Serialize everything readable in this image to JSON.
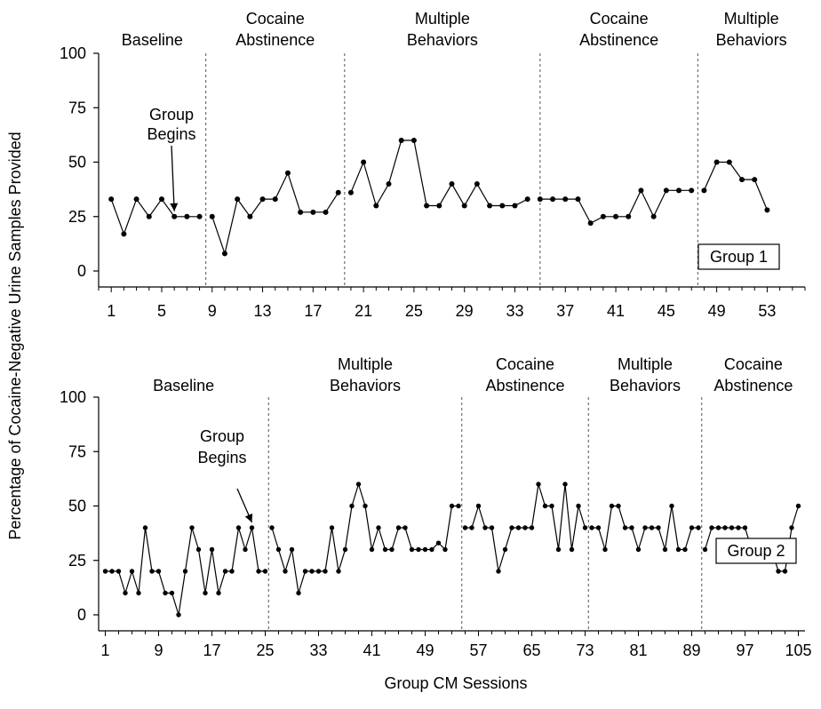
{
  "figure": {
    "ylabel": "Percentage of Cocaine-Negative Urine Samples Provided",
    "xlabel": "Group CM Sessions"
  },
  "chart_data": [
    {
      "type": "line",
      "legend": "Group 1",
      "y_ticks": [
        0,
        25,
        50,
        75,
        100
      ],
      "ylim": [
        0,
        100
      ],
      "x_ticks": [
        1,
        5,
        9,
        13,
        17,
        21,
        25,
        29,
        33,
        37,
        41,
        45,
        49,
        53
      ],
      "xlim": [
        0,
        56
      ],
      "phases": [
        {
          "label": [
            "Baseline"
          ],
          "start": 0,
          "end": 8.5
        },
        {
          "label": [
            "Cocaine",
            "Abstinence"
          ],
          "start": 8.5,
          "end": 19.5
        },
        {
          "label": [
            "Multiple",
            "Behaviors"
          ],
          "start": 19.5,
          "end": 35
        },
        {
          "label": [
            "Cocaine",
            "Abstinence"
          ],
          "start": 35,
          "end": 47.5
        },
        {
          "label": [
            "Multiple",
            "Behaviors"
          ],
          "start": 47.5,
          "end": 56
        }
      ],
      "phase_lines": [
        8.5,
        19.5,
        35,
        47.5
      ],
      "annotation": {
        "text": [
          "Group",
          "Begins"
        ],
        "x": 6,
        "y": 25
      },
      "series": [
        {
          "x": [
            1,
            2,
            3,
            4,
            5,
            6,
            7,
            8
          ],
          "y": [
            33,
            17,
            33,
            25,
            33,
            25,
            25,
            25
          ]
        },
        {
          "x": [
            9,
            10,
            11,
            12,
            13,
            14,
            15,
            16,
            17,
            18,
            19
          ],
          "y": [
            25,
            8,
            33,
            25,
            33,
            33,
            45,
            27,
            27,
            27,
            36
          ]
        },
        {
          "x": [
            20,
            21,
            22,
            23,
            24,
            25,
            26,
            27,
            28,
            29,
            30,
            31,
            32,
            33,
            34
          ],
          "y": [
            36,
            50,
            30,
            40,
            60,
            60,
            30,
            30,
            40,
            30,
            40,
            30,
            30,
            30,
            33
          ]
        },
        {
          "x": [
            35,
            36,
            37,
            38,
            39,
            40,
            41,
            42,
            43,
            44,
            45,
            46,
            47
          ],
          "y": [
            33,
            33,
            33,
            33,
            22,
            25,
            25,
            25,
            37,
            25,
            37,
            37,
            37
          ]
        },
        {
          "x": [
            48,
            49,
            50,
            51,
            52,
            53
          ],
          "y": [
            37,
            50,
            50,
            42,
            42,
            28
          ]
        }
      ]
    },
    {
      "type": "line",
      "legend": "Group 2",
      "y_ticks": [
        0,
        25,
        50,
        75,
        100
      ],
      "ylim": [
        0,
        100
      ],
      "x_ticks": [
        1,
        9,
        17,
        25,
        33,
        41,
        49,
        57,
        65,
        73,
        81,
        89,
        97,
        105
      ],
      "xlim": [
        0,
        106
      ],
      "phases": [
        {
          "label": [
            "Baseline"
          ],
          "start": 0,
          "end": 25.5
        },
        {
          "label": [
            "Multiple",
            "Behaviors"
          ],
          "start": 25.5,
          "end": 54.5
        },
        {
          "label": [
            "Cocaine",
            "Abstinence"
          ],
          "start": 54.5,
          "end": 73.5
        },
        {
          "label": [
            "Multiple",
            "Behaviors"
          ],
          "start": 73.5,
          "end": 90.5
        },
        {
          "label": [
            "Cocaine",
            "Abstinence"
          ],
          "start": 90.5,
          "end": 106
        }
      ],
      "phase_lines": [
        25.5,
        54.5,
        73.5,
        90.5
      ],
      "annotation": {
        "text": [
          "Group",
          "Begins"
        ],
        "x": 23,
        "y": 40
      },
      "series": [
        {
          "x": [
            1,
            2,
            3,
            4,
            5,
            6,
            7,
            8,
            9,
            10,
            11,
            12,
            13,
            14,
            15,
            16,
            17,
            18,
            19,
            20,
            21,
            22,
            23,
            24,
            25
          ],
          "y": [
            20,
            20,
            20,
            10,
            20,
            10,
            40,
            20,
            20,
            10,
            10,
            0,
            20,
            40,
            30,
            10,
            30,
            10,
            20,
            20,
            40,
            30,
            40,
            20,
            20
          ]
        },
        {
          "x": [
            26,
            27,
            28,
            29,
            30,
            31,
            32,
            33,
            34,
            35,
            36,
            37,
            38,
            39,
            40,
            41,
            42,
            43,
            44,
            45,
            46,
            47,
            48,
            49,
            50,
            51,
            52,
            53,
            54
          ],
          "y": [
            40,
            30,
            20,
            30,
            10,
            20,
            20,
            20,
            20,
            40,
            20,
            30,
            50,
            60,
            50,
            30,
            40,
            30,
            30,
            40,
            40,
            30,
            30,
            30,
            30,
            33,
            30,
            50,
            50
          ]
        },
        {
          "x": [
            55,
            56,
            57,
            58,
            59,
            60,
            61,
            62,
            63,
            64,
            65,
            66,
            67,
            68,
            69,
            70,
            71,
            72,
            73
          ],
          "y": [
            40,
            40,
            50,
            40,
            40,
            20,
            30,
            40,
            40,
            40,
            40,
            60,
            50,
            50,
            30,
            60,
            30,
            50,
            40
          ]
        },
        {
          "x": [
            74,
            75,
            76,
            77,
            78,
            79,
            80,
            81,
            82,
            83,
            84,
            85,
            86,
            87,
            88,
            89,
            90
          ],
          "y": [
            40,
            40,
            30,
            50,
            50,
            40,
            40,
            30,
            40,
            40,
            40,
            30,
            50,
            30,
            30,
            40,
            40
          ]
        },
        {
          "x": [
            91,
            92,
            93,
            94,
            95,
            96,
            97,
            98,
            99,
            100,
            101,
            102,
            103,
            104,
            105
          ],
          "y": [
            30,
            40,
            40,
            40,
            40,
            40,
            40,
            30,
            30,
            30,
            30,
            20,
            20,
            40,
            50
          ]
        }
      ]
    }
  ]
}
